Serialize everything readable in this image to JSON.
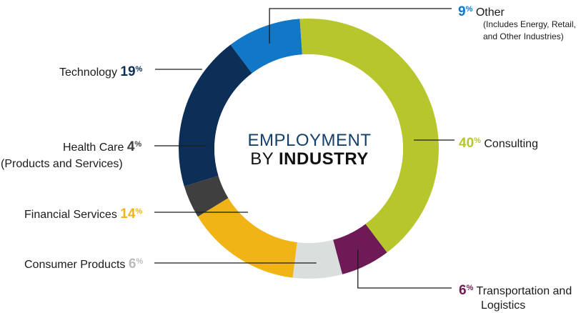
{
  "colors": {
    "other": "#1177c7",
    "consulting": "#b8c62e",
    "transportation": "#6d1a56",
    "consumer": "#dadedd",
    "financial": "#f1b417",
    "health": "#3f3f40",
    "technology": "#0d2e57",
    "center_line1": "#15406a",
    "center_line2": "#111111",
    "leader": "#1b1b1b"
  },
  "chart_data": {
    "type": "pie",
    "variant": "donut",
    "title_line1": "EMPLOYMENT",
    "title_line2a": "BY",
    "title_line2b": "INDUSTRY",
    "slices": [
      {
        "key": "other",
        "label": "Other",
        "sublabel_line1": "(Includes Energy, Retail,",
        "sublabel_line2": "and Other Industries)",
        "value": 9,
        "pct_text": "9"
      },
      {
        "key": "consulting",
        "label": "Consulting",
        "value": 40,
        "pct_text": "40"
      },
      {
        "key": "transportation",
        "label": "Transportation and",
        "label_line2": "Logistics",
        "value": 6,
        "pct_text": "6"
      },
      {
        "key": "consumer",
        "label": "Consumer Products",
        "value": 6,
        "pct_text": "6"
      },
      {
        "key": "financial",
        "label": "Financial Services",
        "value": 14,
        "pct_text": "14"
      },
      {
        "key": "health",
        "label": "Health Care",
        "label_line2": "(Products and Services)",
        "value": 4,
        "pct_text": "4"
      },
      {
        "key": "technology",
        "label": "Technology",
        "value": 19,
        "pct_text": "19"
      }
    ],
    "percent_sign": "%"
  }
}
